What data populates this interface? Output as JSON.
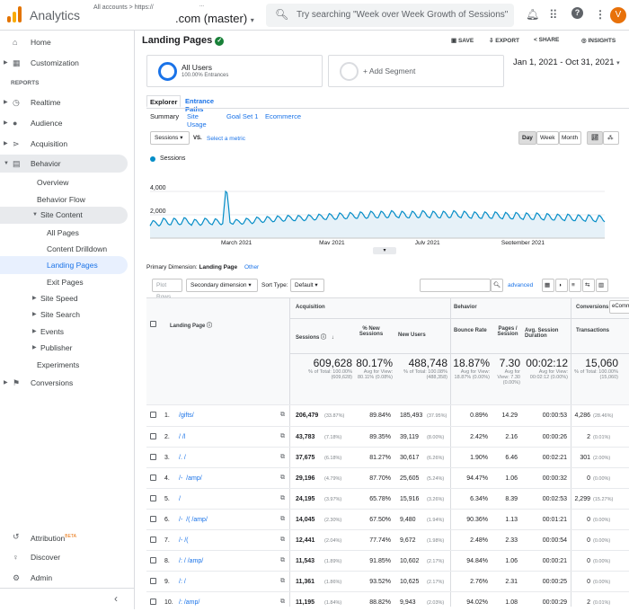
{
  "app": {
    "brand": "Analytics",
    "account_line": "All accounts > https://",
    "account_sub": "...",
    "property": ".com (master)"
  },
  "search": {
    "placeholder": "Try searching \"Week over Week Growth of Sessions\""
  },
  "sidebar": {
    "home": "Home",
    "customization": "Customization",
    "reports_header": "REPORTS",
    "realtime": "Realtime",
    "audience": "Audience",
    "acquisition": "Acquisition",
    "behavior": "Behavior",
    "overview": "Overview",
    "behavior_flow": "Behavior Flow",
    "site_content": "Site Content",
    "all_pages": "All Pages",
    "content_drilldown": "Content Drilldown",
    "landing_pages": "Landing Pages",
    "exit_pages": "Exit Pages",
    "site_speed": "Site Speed",
    "site_search": "Site Search",
    "events": "Events",
    "publisher": "Publisher",
    "experiments": "Experiments",
    "conversions": "Conversions",
    "attribution": "Attribution",
    "beta": "BETA",
    "discover": "Discover",
    "admin": "Admin"
  },
  "report": {
    "title": "Landing Pages",
    "save": "SAVE",
    "export": "EXPORT",
    "share": "SHARE",
    "insights": "INSIGHTS"
  },
  "segment": {
    "name": "All Users",
    "sub": "100.00% Entrances",
    "add": "+ Add Segment"
  },
  "date_range": "Jan 1, 2021 - Oct 31, 2021",
  "tabs": {
    "explorer": "Explorer",
    "entrance_paths": "Entrance Paths"
  },
  "subtabs": [
    "Summary",
    "Site Usage",
    "Goal Set 1",
    "Ecommerce"
  ],
  "metric": {
    "selected": "Sessions",
    "vs": "VS.",
    "select": "Select a metric",
    "day": "Day",
    "week": "Week",
    "month": "Month"
  },
  "chart_data": {
    "type": "line",
    "series": [
      {
        "name": "Sessions",
        "color": "#058dc7"
      }
    ],
    "y_ticks": [
      "4,000",
      "2,000"
    ],
    "ylim": [
      0,
      4000
    ],
    "x_ticks": [
      "March 2021",
      "May 2021",
      "July 2021",
      "September 2021"
    ],
    "x": "daily, Jan 1 2021 - Oct 31 2021",
    "weekly_values": [
      1500,
      1700,
      1700,
      1750,
      1600,
      1700,
      1650,
      4000,
      1600,
      1700,
      1800,
      1850,
      1900,
      1950,
      1950,
      2000,
      2050,
      2100,
      2150,
      2200,
      2250,
      2300,
      2300,
      2350,
      2300,
      2300,
      2350,
      2300,
      2300,
      2350,
      2300,
      2250,
      2250,
      2250,
      2200,
      2200,
      2150,
      2150,
      2100,
      2050,
      2050,
      2000,
      2000,
      1950
    ],
    "weekly_min": [
      1050,
      1150,
      1150,
      1200,
      1100,
      1200,
      1150,
      1250,
      1200,
      1250,
      1350,
      1400,
      1450,
      1500,
      1500,
      1550,
      1600,
      1600,
      1650,
      1700,
      1700,
      1750,
      1750,
      1800,
      1750,
      1750,
      1800,
      1750,
      1750,
      1800,
      1750,
      1700,
      1700,
      1700,
      1650,
      1650,
      1600,
      1600,
      1550,
      1550,
      1500,
      1500,
      1450,
      1400
    ]
  },
  "table": {
    "primary_dimension_label": "Primary Dimension:",
    "primary_dimension": "Landing Page",
    "other": "Other",
    "plot_rows": "Plot Rows",
    "secondary_dimension": "Secondary dimension",
    "sort_type": "Sort Type:",
    "sort_default": "Default",
    "advanced": "advanced",
    "groups": {
      "acquisition": "Acquisition",
      "behavior": "Behavior",
      "conversions": "Conversions",
      "ecom": "eCommer"
    },
    "headers": [
      "Landing Page",
      "Sessions",
      "% New Sessions",
      "New Users",
      "Bounce Rate",
      "Pages / Session",
      "Avg. Session Duration",
      "Transactions"
    ],
    "totals": [
      {
        "v": "609,628",
        "s": "% of Total: 100.00% (609,628)"
      },
      {
        "v": "80.17%",
        "s": "Avg for View: 80.11% (0.08%)"
      },
      {
        "v": "488,748",
        "s": "% of Total: 100.08% (488,358)"
      },
      {
        "v": "18.87%",
        "s": "Avg for View: 18.87% (0.00%)"
      },
      {
        "v": "7.30",
        "s": "Avg for View: 7.30 (0.00%)"
      },
      {
        "v": "00:02:12",
        "s": "Avg for View: 00:02:12 (0.00%)"
      },
      {
        "v": "15,060",
        "s": "% of Total: 100.00% (15,060)"
      }
    ],
    "rows": [
      {
        "n": "1.",
        "page": "/gifts/",
        "s": "206,479",
        "sp": "(33.87%)",
        "ns": "89.84%",
        "nu": "185,493",
        "nup": "(37.95%)",
        "br": "0.89%",
        "ps": "14.29",
        "d": "00:00:53",
        "t": "4,286",
        "tp": "(28.46%)"
      },
      {
        "n": "2.",
        "page": "/ /l",
        "s": "43,783",
        "sp": "(7.18%)",
        "ns": "89.35%",
        "nu": "39,119",
        "nup": "(8.00%)",
        "br": "2.42%",
        "ps": "2.16",
        "d": "00:00:26",
        "t": "2",
        "tp": "(0.01%)"
      },
      {
        "n": "3.",
        "page": "/. /",
        "s": "37,675",
        "sp": "(6.18%)",
        "ns": "81.27%",
        "nu": "30,617",
        "nup": "(6.26%)",
        "br": "1.90%",
        "ps": "6.46",
        "d": "00:02:21",
        "t": "301",
        "tp": "(2.00%)"
      },
      {
        "n": "4.",
        "page": "/-  /amp/",
        "s": "29,196",
        "sp": "(4.79%)",
        "ns": "87.70%",
        "nu": "25,605",
        "nup": "(5.24%)",
        "br": "94.47%",
        "ps": "1.06",
        "d": "00:00:32",
        "t": "0",
        "tp": "(0.00%)"
      },
      {
        "n": "5.",
        "page": "/",
        "s": "24,195",
        "sp": "(3.97%)",
        "ns": "65.78%",
        "nu": "15,916",
        "nup": "(3.26%)",
        "br": "6.34%",
        "ps": "8.39",
        "d": "00:02:53",
        "t": "2,299",
        "tp": "(15.27%)"
      },
      {
        "n": "6.",
        "page": "/-  /( /amp/",
        "s": "14,045",
        "sp": "(2.30%)",
        "ns": "67.50%",
        "nu": "9,480",
        "nup": "(1.94%)",
        "br": "90.36%",
        "ps": "1.13",
        "d": "00:01:21",
        "t": "0",
        "tp": "(0.00%)"
      },
      {
        "n": "7.",
        "page": "/- /(",
        "s": "12,441",
        "sp": "(2.04%)",
        "ns": "77.74%",
        "nu": "9,672",
        "nup": "(1.98%)",
        "br": "2.48%",
        "ps": "2.33",
        "d": "00:00:54",
        "t": "0",
        "tp": "(0.00%)"
      },
      {
        "n": "8.",
        "page": "/: / /amp/",
        "s": "11,543",
        "sp": "(1.89%)",
        "ns": "91.85%",
        "nu": "10,602",
        "nup": "(2.17%)",
        "br": "94.84%",
        "ps": "1.06",
        "d": "00:00:21",
        "t": "0",
        "tp": "(0.00%)"
      },
      {
        "n": "9.",
        "page": "/: /",
        "s": "11,361",
        "sp": "(1.86%)",
        "ns": "93.52%",
        "nu": "10,625",
        "nup": "(2.17%)",
        "br": "2.76%",
        "ps": "2.31",
        "d": "00:00:25",
        "t": "0",
        "tp": "(0.00%)"
      },
      {
        "n": "10.",
        "page": "/: /amp/",
        "s": "11,195",
        "sp": "(1.84%)",
        "ns": "88.82%",
        "nu": "9,943",
        "nup": "(2.03%)",
        "br": "94.02%",
        "ps": "1.08",
        "d": "00:00:29",
        "t": "2",
        "tp": "(0.01%)"
      }
    ]
  }
}
